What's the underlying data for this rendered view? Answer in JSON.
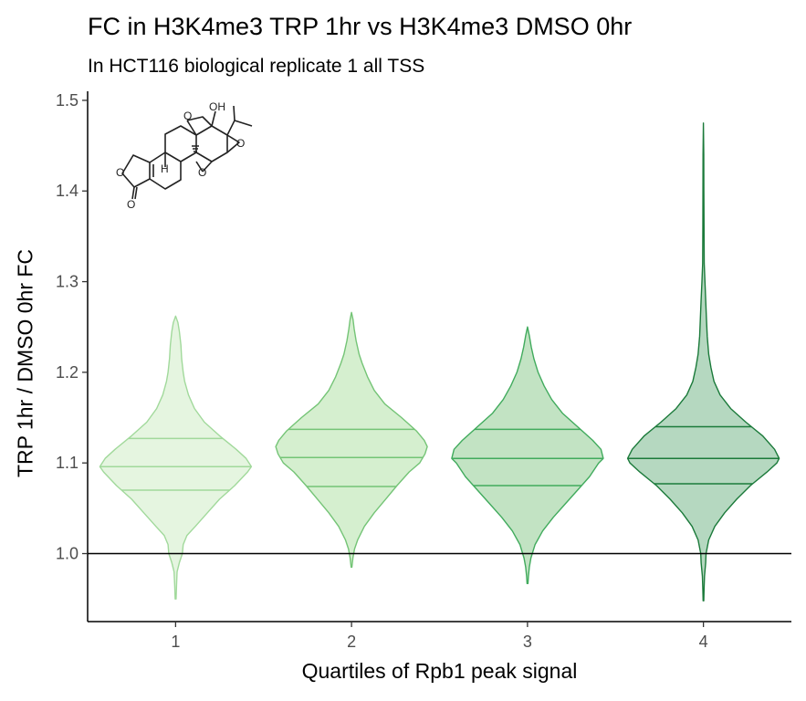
{
  "chart_data": {
    "type": "violin",
    "title": "FC in H3K4me3 TRP 1hr vs H3K4me3 DMSO 0hr",
    "subtitle": "In HCT116 biological replicate 1 all TSS",
    "xlabel": "Quartiles of Rpb1 peak signal",
    "ylabel": "TRP 1hr / DMSO 0hr FC",
    "categories": [
      "1",
      "2",
      "3",
      "4"
    ],
    "ylim": [
      0.925,
      1.51
    ],
    "yticks": [
      1.0,
      1.1,
      1.2,
      1.3,
      1.4,
      1.5
    ],
    "ytick_labels": [
      "1.0",
      "1.1",
      "1.2",
      "1.3",
      "1.4",
      "1.5"
    ],
    "reference_line": 1.0,
    "grid": false,
    "legend": "none",
    "series": [
      {
        "category": "1",
        "min": 0.95,
        "q1": 1.07,
        "median": 1.096,
        "q3": 1.127,
        "max": 1.262,
        "fill": "#e5f5e0",
        "stroke": "#a1d99b",
        "profile": [
          [
            0.95,
            0.006
          ],
          [
            0.965,
            0.012
          ],
          [
            0.98,
            0.02
          ],
          [
            0.99,
            0.05
          ],
          [
            1.0,
            0.09
          ],
          [
            1.01,
            0.1
          ],
          [
            1.02,
            0.15
          ],
          [
            1.03,
            0.26
          ],
          [
            1.045,
            0.42
          ],
          [
            1.06,
            0.58
          ],
          [
            1.075,
            0.78
          ],
          [
            1.09,
            0.95
          ],
          [
            1.096,
            1.0
          ],
          [
            1.105,
            0.93
          ],
          [
            1.115,
            0.8
          ],
          [
            1.13,
            0.58
          ],
          [
            1.145,
            0.38
          ],
          [
            1.16,
            0.25
          ],
          [
            1.175,
            0.17
          ],
          [
            1.19,
            0.12
          ],
          [
            1.2,
            0.1
          ],
          [
            1.215,
            0.08
          ],
          [
            1.23,
            0.07
          ],
          [
            1.245,
            0.05
          ],
          [
            1.255,
            0.03
          ],
          [
            1.262,
            0.0
          ]
        ]
      },
      {
        "category": "2",
        "min": 0.985,
        "q1": 1.074,
        "median": 1.106,
        "q3": 1.137,
        "max": 1.266,
        "fill": "#d5efcf",
        "stroke": "#74c476",
        "profile": [
          [
            0.985,
            0.005
          ],
          [
            0.995,
            0.018
          ],
          [
            1.005,
            0.04
          ],
          [
            1.015,
            0.08
          ],
          [
            1.03,
            0.17
          ],
          [
            1.045,
            0.3
          ],
          [
            1.06,
            0.45
          ],
          [
            1.075,
            0.6
          ],
          [
            1.09,
            0.76
          ],
          [
            1.1,
            0.9
          ],
          [
            1.11,
            0.97
          ],
          [
            1.118,
            1.0
          ],
          [
            1.125,
            0.96
          ],
          [
            1.135,
            0.86
          ],
          [
            1.15,
            0.66
          ],
          [
            1.165,
            0.44
          ],
          [
            1.18,
            0.3
          ],
          [
            1.195,
            0.21
          ],
          [
            1.21,
            0.14
          ],
          [
            1.22,
            0.1
          ],
          [
            1.235,
            0.06
          ],
          [
            1.248,
            0.035
          ],
          [
            1.258,
            0.02
          ],
          [
            1.266,
            0.0
          ]
        ]
      },
      {
        "category": "3",
        "min": 0.967,
        "q1": 1.075,
        "median": 1.105,
        "q3": 1.137,
        "max": 1.25,
        "fill": "#c2e3c3",
        "stroke": "#41ab5d",
        "profile": [
          [
            0.967,
            0.006
          ],
          [
            0.975,
            0.012
          ],
          [
            0.985,
            0.024
          ],
          [
            0.995,
            0.045
          ],
          [
            1.01,
            0.1
          ],
          [
            1.025,
            0.2
          ],
          [
            1.04,
            0.34
          ],
          [
            1.055,
            0.5
          ],
          [
            1.07,
            0.66
          ],
          [
            1.085,
            0.82
          ],
          [
            1.1,
            0.94
          ],
          [
            1.105,
            1.0
          ],
          [
            1.115,
            0.97
          ],
          [
            1.125,
            0.86
          ],
          [
            1.14,
            0.66
          ],
          [
            1.155,
            0.46
          ],
          [
            1.17,
            0.32
          ],
          [
            1.185,
            0.22
          ],
          [
            1.2,
            0.14
          ],
          [
            1.215,
            0.085
          ],
          [
            1.228,
            0.05
          ],
          [
            1.24,
            0.025
          ],
          [
            1.25,
            0.0
          ]
        ]
      },
      {
        "category": "4",
        "min": 0.948,
        "q1": 1.077,
        "median": 1.105,
        "q3": 1.14,
        "max": 1.475,
        "fill": "#b5d8c0",
        "stroke": "#1b7a3a",
        "profile": [
          [
            0.948,
            0.004
          ],
          [
            0.96,
            0.008
          ],
          [
            0.975,
            0.014
          ],
          [
            0.99,
            0.03
          ],
          [
            1.0,
            0.035
          ],
          [
            1.015,
            0.07
          ],
          [
            1.03,
            0.15
          ],
          [
            1.045,
            0.28
          ],
          [
            1.06,
            0.44
          ],
          [
            1.075,
            0.62
          ],
          [
            1.09,
            0.84
          ],
          [
            1.1,
            0.97
          ],
          [
            1.105,
            1.0
          ],
          [
            1.115,
            0.94
          ],
          [
            1.13,
            0.78
          ],
          [
            1.145,
            0.56
          ],
          [
            1.16,
            0.36
          ],
          [
            1.175,
            0.22
          ],
          [
            1.19,
            0.14
          ],
          [
            1.205,
            0.1
          ],
          [
            1.22,
            0.07
          ],
          [
            1.24,
            0.05
          ],
          [
            1.26,
            0.04
          ],
          [
            1.28,
            0.03
          ],
          [
            1.3,
            0.02
          ],
          [
            1.32,
            0.01
          ],
          [
            1.36,
            0.008
          ],
          [
            1.4,
            0.006
          ],
          [
            1.44,
            0.005
          ],
          [
            1.475,
            0.0
          ]
        ]
      }
    ]
  },
  "molecule": {
    "name": "triptolide-structure",
    "labels": [
      "OH",
      "O",
      "O",
      "O",
      "H",
      "O",
      "O"
    ]
  }
}
